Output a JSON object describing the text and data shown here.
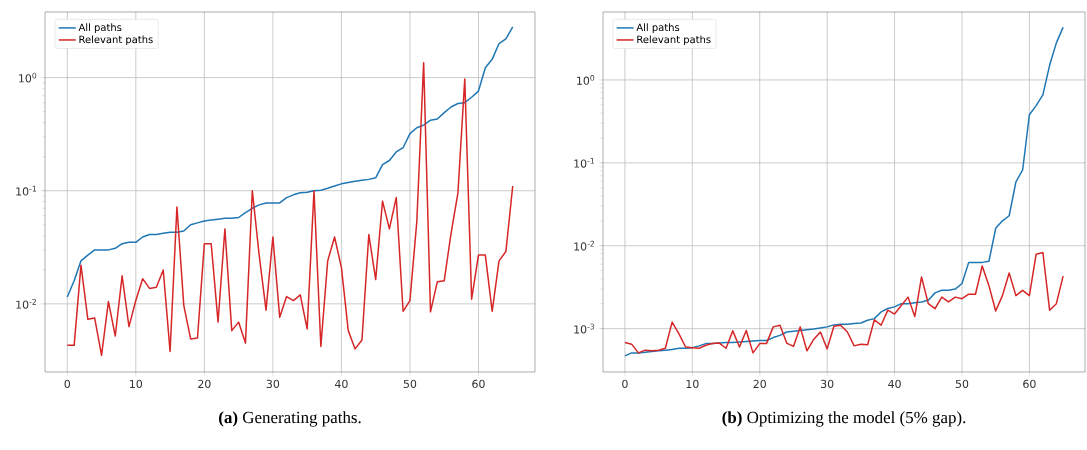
{
  "chart_data": [
    {
      "type": "line",
      "title": "**(a)** Generating paths.",
      "log": "y",
      "grid": true,
      "legend": "top left",
      "xlim": [
        -3.25,
        68.25
      ],
      "ylim": [
        0.0025,
        3.8
      ],
      "xticks": [
        0,
        10,
        20,
        30,
        40,
        50,
        60
      ],
      "yticks": [
        {
          "value": 0.01,
          "label": "10$^{-2}$"
        },
        {
          "value": 0.1,
          "label": "10$^{-1}$"
        },
        {
          "value": 1,
          "label": "10$^{0}$"
        }
      ],
      "x": [
        0,
        1,
        2,
        3,
        4,
        5,
        6,
        7,
        8,
        9,
        10,
        11,
        12,
        13,
        14,
        15,
        16,
        17,
        18,
        19,
        20,
        21,
        22,
        23,
        24,
        25,
        26,
        27,
        28,
        29,
        30,
        31,
        32,
        33,
        34,
        35,
        36,
        37,
        38,
        39,
        40,
        41,
        42,
        43,
        44,
        45,
        46,
        47,
        48,
        49,
        50,
        51,
        52,
        53,
        54,
        55,
        56,
        57,
        58,
        59,
        60,
        61,
        62,
        63,
        64,
        65
      ],
      "series": [
        {
          "name": "All paths",
          "color": "#1f77b4",
          "values": [
            0.0115,
            0.016,
            0.024,
            0.027,
            0.03,
            0.03,
            0.03,
            0.031,
            0.034,
            0.035,
            0.035,
            0.039,
            0.041,
            0.041,
            0.042,
            0.043,
            0.043,
            0.044,
            0.05,
            0.052,
            0.054,
            0.055,
            0.056,
            0.057,
            0.057,
            0.058,
            0.064,
            0.07,
            0.075,
            0.078,
            0.078,
            0.078,
            0.087,
            0.092,
            0.096,
            0.097,
            0.1,
            0.101,
            0.105,
            0.11,
            0.115,
            0.118,
            0.121,
            0.124,
            0.126,
            0.13,
            0.17,
            0.185,
            0.22,
            0.24,
            0.32,
            0.36,
            0.38,
            0.42,
            0.43,
            0.49,
            0.55,
            0.59,
            0.6,
            0.67,
            0.76,
            1.22,
            1.45,
            2.0,
            2.2,
            2.8
          ]
        },
        {
          "name": "Relevant paths",
          "color": "#d62728",
          "values": [
            0.0043,
            0.0043,
            0.022,
            0.0073,
            0.0075,
            0.0035,
            0.0105,
            0.0052,
            0.0177,
            0.0063,
            0.0107,
            0.0167,
            0.0137,
            0.014,
            0.0199,
            0.0038,
            0.072,
            0.0097,
            0.0049,
            0.005,
            0.034,
            0.034,
            0.0069,
            0.046,
            0.0058,
            0.0069,
            0.0045,
            0.1,
            0.027,
            0.0088,
            0.039,
            0.0076,
            0.0116,
            0.0107,
            0.012,
            0.006,
            0.1,
            0.0042,
            0.024,
            0.039,
            0.021,
            0.0058,
            0.004,
            0.0048,
            0.041,
            0.0164,
            0.081,
            0.046,
            0.087,
            0.0086,
            0.0107,
            0.053,
            1.35,
            0.0085,
            0.0157,
            0.016,
            0.042,
            0.095,
            0.97,
            0.011,
            0.027,
            0.027,
            0.0086,
            0.024,
            0.029,
            0.11
          ]
        }
      ]
    },
    {
      "type": "line",
      "title": "**(b)** Optimizing the model (5% gap).",
      "log": "y",
      "grid": true,
      "legend": "top left",
      "xlim": [
        -3.25,
        68.25
      ],
      "ylim": [
        0.0003,
        6.6
      ],
      "xticks": [
        0,
        10,
        20,
        30,
        40,
        50,
        60
      ],
      "yticks": [
        {
          "value": 0.001,
          "label": "10$^{-3}$"
        },
        {
          "value": 0.01,
          "label": "10$^{-2}$"
        },
        {
          "value": 0.1,
          "label": "10$^{-1}$"
        },
        {
          "value": 1,
          "label": "10$^{0}$"
        }
      ],
      "x": [
        0,
        1,
        2,
        3,
        4,
        5,
        6,
        7,
        8,
        9,
        10,
        11,
        12,
        13,
        14,
        15,
        16,
        17,
        18,
        19,
        20,
        21,
        22,
        23,
        24,
        25,
        26,
        27,
        28,
        29,
        30,
        31,
        32,
        33,
        34,
        35,
        36,
        37,
        38,
        39,
        40,
        41,
        42,
        43,
        44,
        45,
        46,
        47,
        48,
        49,
        50,
        51,
        52,
        53,
        54,
        55,
        56,
        57,
        58,
        59,
        60,
        61,
        62,
        63,
        64,
        65
      ],
      "series": [
        {
          "name": "All paths",
          "color": "#1f77b4",
          "values": [
            0.00047,
            0.00051,
            0.00051,
            0.00052,
            0.00053,
            0.00054,
            0.00055,
            0.00056,
            0.00058,
            0.00058,
            0.00059,
            0.00062,
            0.00066,
            0.00066,
            0.00067,
            0.00068,
            0.00068,
            0.00069,
            0.0007,
            0.00071,
            0.00072,
            0.00072,
            0.00078,
            0.00083,
            0.00091,
            0.00093,
            0.00095,
            0.00097,
            0.00099,
            0.00102,
            0.00105,
            0.00111,
            0.00113,
            0.00113,
            0.00115,
            0.00117,
            0.00126,
            0.00132,
            0.00159,
            0.00175,
            0.00183,
            0.002,
            0.002,
            0.00205,
            0.0021,
            0.0022,
            0.0027,
            0.0029,
            0.0029,
            0.003,
            0.0035,
            0.0063,
            0.0063,
            0.0063,
            0.0065,
            0.0162,
            0.02,
            0.023,
            0.059,
            0.082,
            0.38,
            0.49,
            0.66,
            1.5,
            2.8,
            4.3
          ]
        },
        {
          "name": "Relevant paths",
          "color": "#d62728",
          "values": [
            0.00068,
            0.00065,
            0.00051,
            0.00055,
            0.00054,
            0.00055,
            0.00058,
            0.0012,
            0.00087,
            0.0006,
            0.00059,
            0.00058,
            0.00063,
            0.00066,
            0.00067,
            0.00058,
            0.00094,
            0.0006,
            0.00095,
            0.00051,
            0.00066,
            0.00066,
            0.00105,
            0.0011,
            0.00067,
            0.00061,
            0.00105,
            0.00054,
            0.00074,
            0.00091,
            0.00057,
            0.00107,
            0.0011,
            0.00091,
            0.00062,
            0.00065,
            0.00064,
            0.00128,
            0.0011,
            0.00167,
            0.0015,
            0.0019,
            0.0024,
            0.0014,
            0.0042,
            0.002,
            0.00174,
            0.0024,
            0.0021,
            0.0024,
            0.0023,
            0.0026,
            0.0026,
            0.0057,
            0.0033,
            0.00163,
            0.0025,
            0.0047,
            0.0025,
            0.0029,
            0.0025,
            0.0079,
            0.0083,
            0.00167,
            0.002,
            0.0043
          ]
        }
      ]
    }
  ]
}
